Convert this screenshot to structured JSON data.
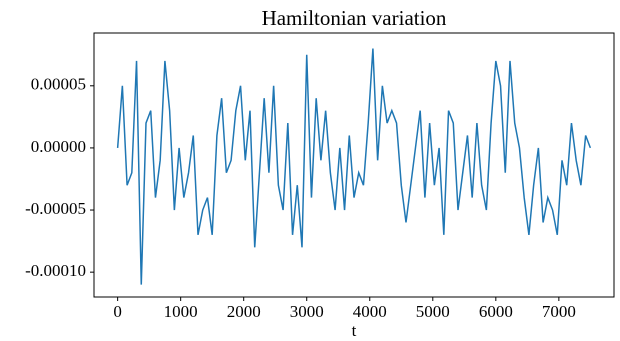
{
  "chart_data": {
    "type": "line",
    "title": "Hamiltonian variation",
    "xlabel": "t",
    "x": [
      0,
      75,
      150,
      225,
      300,
      375,
      450,
      525,
      600,
      675,
      750,
      825,
      900,
      975,
      1050,
      1125,
      1200,
      1275,
      1350,
      1425,
      1500,
      1575,
      1650,
      1725,
      1800,
      1875,
      1950,
      2025,
      2100,
      2175,
      2250,
      2325,
      2400,
      2475,
      2550,
      2625,
      2700,
      2775,
      2850,
      2925,
      3000,
      3075,
      3150,
      3225,
      3300,
      3375,
      3450,
      3525,
      3600,
      3675,
      3750,
      3825,
      3900,
      3975,
      4050,
      4125,
      4200,
      4275,
      4350,
      4425,
      4500,
      4575,
      4650,
      4725,
      4800,
      4875,
      4950,
      5025,
      5100,
      5175,
      5250,
      5325,
      5400,
      5475,
      5550,
      5625,
      5700,
      5775,
      5850,
      5925,
      6000,
      6075,
      6150,
      6225,
      6300,
      6375,
      6450,
      6525,
      6600,
      6675,
      6750,
      6825,
      6900,
      6975,
      7050,
      7125,
      7200,
      7275,
      7350,
      7425,
      7500
    ],
    "series": [
      {
        "color": "#1f77b4",
        "values": [
          0,
          5e-05,
          -3e-05,
          -2e-05,
          7e-05,
          -0.00011,
          2e-05,
          3e-05,
          -4e-05,
          -1e-05,
          7e-05,
          3e-05,
          -5e-05,
          0,
          -4e-05,
          -2e-05,
          1e-05,
          -7e-05,
          -5e-05,
          -4e-05,
          -7e-05,
          1e-05,
          4e-05,
          -2e-05,
          -1e-05,
          3e-05,
          5e-05,
          -1e-05,
          3e-05,
          -8e-05,
          -2e-05,
          4e-05,
          -2e-05,
          5e-05,
          -3e-05,
          -5e-05,
          2e-05,
          -7e-05,
          -3e-05,
          -8e-05,
          7.5e-05,
          -4e-05,
          4e-05,
          -1e-05,
          3e-05,
          -2e-05,
          -5e-05,
          0,
          -5e-05,
          1e-05,
          -4e-05,
          -2e-05,
          -3e-05,
          2e-05,
          8e-05,
          -1e-05,
          5e-05,
          2e-05,
          3e-05,
          2e-05,
          -3e-05,
          -6e-05,
          -3e-05,
          0,
          3e-05,
          -4e-05,
          2e-05,
          -3e-05,
          0,
          -7e-05,
          3e-05,
          2e-05,
          -5e-05,
          -2e-05,
          1e-05,
          -4e-05,
          2e-05,
          -3e-05,
          -5e-05,
          2e-05,
          7e-05,
          5e-05,
          -2e-05,
          7e-05,
          2e-05,
          0,
          -4e-05,
          -7e-05,
          -3e-05,
          0,
          -6e-05,
          -4e-05,
          -5e-05,
          -7e-05,
          -1e-05,
          -3e-05,
          2e-05,
          -1e-05,
          -3e-05,
          1e-05,
          0
        ]
      }
    ],
    "xlim": [
      -375,
      7875
    ],
    "ylim": [
      -0.00012,
      9.25e-05
    ],
    "xticks": [
      0,
      1000,
      2000,
      3000,
      4000,
      5000,
      6000,
      7000
    ],
    "yticks": [
      {
        "value": -0.0001,
        "label": "-0.00010"
      },
      -5e-05,
      {
        "value": 0,
        "label": "0.00000"
      },
      5e-05
    ]
  }
}
